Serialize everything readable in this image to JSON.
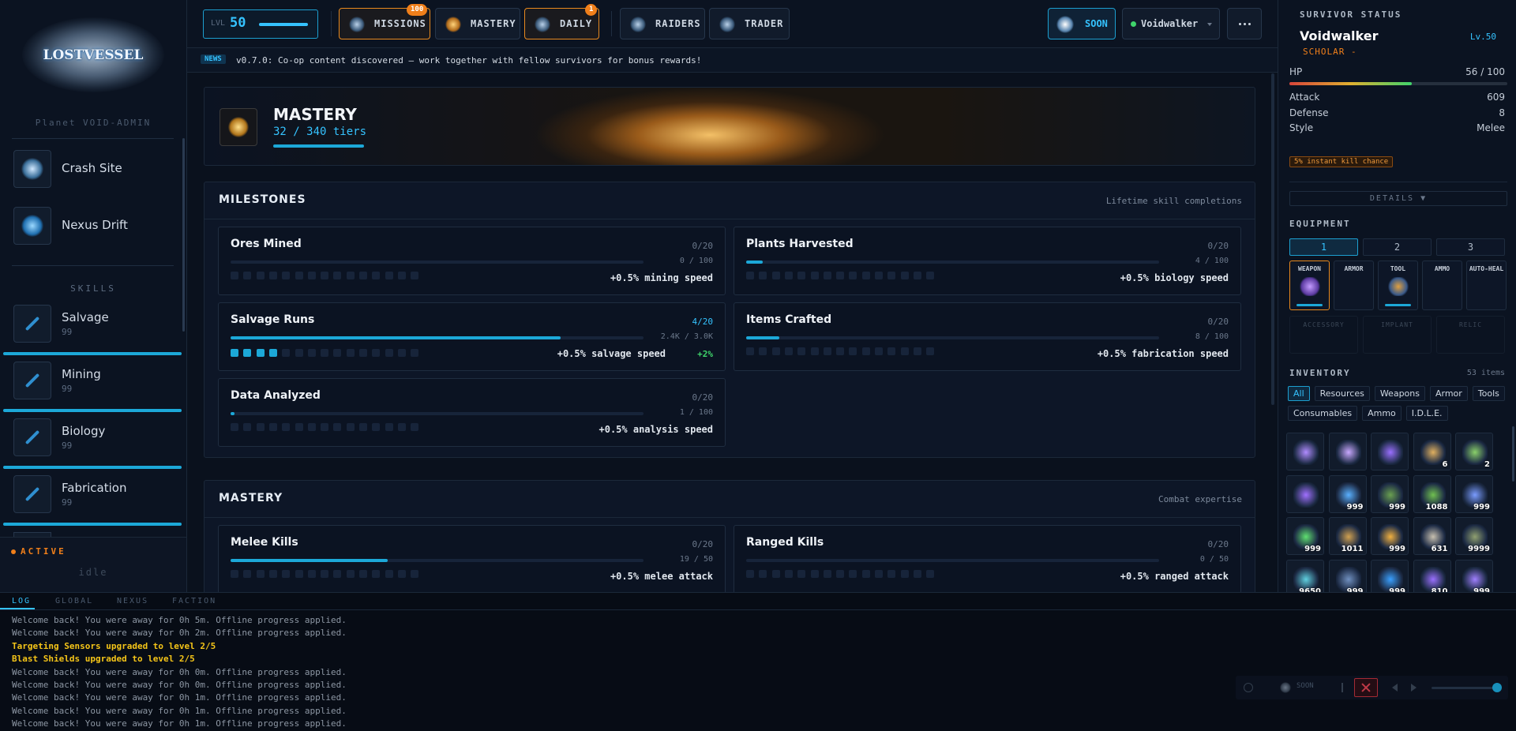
{
  "sidebar": {
    "brand": "LOSTVESSEL",
    "planet": "Planet VOID-ADMIN",
    "locations": [
      "Crash Site",
      "Nexus Drift"
    ],
    "skills_heading": "SKILLS",
    "skills": [
      {
        "name": "Salvage",
        "level": "99"
      },
      {
        "name": "Mining",
        "level": "99"
      },
      {
        "name": "Biology",
        "level": "99"
      },
      {
        "name": "Fabrication",
        "level": "99"
      }
    ],
    "status": "ACTIVE",
    "activity": "idle"
  },
  "topbar": {
    "level_label": "LVL",
    "level": "50",
    "nav": [
      {
        "label": "MISSIONS",
        "badge": "100"
      },
      {
        "label": "MASTERY"
      },
      {
        "label": "DAILY",
        "badge": "1"
      },
      {
        "label": "RAIDERS"
      },
      {
        "label": "TRADER"
      }
    ],
    "steam": "SOON",
    "user": "Voidwalker"
  },
  "news": {
    "tag": "NEWS",
    "text": "v0.7.0: Co-op content discovered — work together with fellow survivors for bonus rewards!"
  },
  "banner": {
    "title": "MASTERY",
    "tiers": "32 / 340 tiers"
  },
  "sections": [
    {
      "title": "MILESTONES",
      "subtitle": "Lifetime skill completions",
      "cards": [
        {
          "name": "Ores Mined",
          "tier": "0/20",
          "progress": "0 / 100",
          "bonus": "+0.5% mining speed"
        },
        {
          "name": "Plants Harvested",
          "tier": "0/20",
          "progress": "4 / 100",
          "bonus": "+0.5% biology speed"
        },
        {
          "name": "Salvage Runs",
          "tier": "4/20",
          "progress": "2.4K / 3.0K",
          "bonus": "+0.5% salvage speed",
          "total": "+2%"
        },
        {
          "name": "Items Crafted",
          "tier": "0/20",
          "progress": "8 / 100",
          "bonus": "+0.5% fabrication speed"
        },
        {
          "name": "Data Analyzed",
          "tier": "0/20",
          "progress": "1 / 100",
          "bonus": "+0.5% analysis speed"
        }
      ]
    },
    {
      "title": "MASTERY",
      "subtitle": "Combat expertise",
      "cards": [
        {
          "name": "Melee Kills",
          "tier": "0/20",
          "progress": "19 / 50",
          "bonus": "+0.5% melee attack"
        },
        {
          "name": "Ranged Kills",
          "tier": "0/20",
          "progress": "0 / 50",
          "bonus": "+0.5% ranged attack"
        }
      ]
    }
  ],
  "status": {
    "heading": "SURVIVOR STATUS",
    "name": "Voidwalker",
    "level": "Lv.50",
    "class": "SCHOLAR -",
    "hp_label": "HP",
    "hp": "56 / 100",
    "stats": [
      {
        "label": "Attack",
        "value": "609"
      },
      {
        "label": "Defense",
        "value": "8"
      },
      {
        "label": "Style",
        "value": "Melee"
      }
    ],
    "perk": "5% instant kill chance",
    "details": "DETAILS ▼"
  },
  "equipment": {
    "heading": "EQUIPMENT",
    "loadouts": [
      "1",
      "2",
      "3"
    ],
    "slots": [
      "WEAPON",
      "ARMOR",
      "TOOL",
      "AMMO",
      "AUTO-HEAL"
    ],
    "extra_slots": [
      "ACCESSORY",
      "IMPLANT",
      "RELIC"
    ]
  },
  "inventory": {
    "heading": "INVENTORY",
    "count": "53 items",
    "filters": [
      "All",
      "Resources",
      "Weapons",
      "Armor",
      "Tools",
      "Consumables",
      "Ammo",
      "I.D.L.E."
    ],
    "items": [
      null,
      null,
      null,
      "6",
      "2",
      null,
      "999",
      "999",
      "1088",
      "999",
      "999",
      "1011",
      "999",
      "631",
      "9999",
      "9650",
      "999",
      "999",
      "810",
      "999"
    ]
  },
  "log": {
    "tabs": [
      "LOG",
      "GLOBAL",
      "NEXUS",
      "FACTION"
    ],
    "lines": [
      {
        "text": "Welcome back! You were away for 0h 5m. Offline progress applied."
      },
      {
        "text": "Welcome back! You were away for 0h 2m. Offline progress applied."
      },
      {
        "text": "Targeting Sensors upgraded to level 2/5",
        "highlight": true
      },
      {
        "text": "Blast Shields upgraded to level 2/5",
        "highlight": true
      },
      {
        "text": "Welcome back! You were away for 0h 0m. Offline progress applied."
      },
      {
        "text": "Welcome back! You were away for 0h 0m. Offline progress applied."
      },
      {
        "text": "Welcome back! You were away for 0h 1m. Offline progress applied."
      },
      {
        "text": "Welcome back! You were away for 0h 1m. Offline progress applied."
      },
      {
        "text": "Welcome back! You were away for 0h 1m. Offline progress applied."
      }
    ]
  },
  "controls": {
    "steam": "SOON"
  }
}
